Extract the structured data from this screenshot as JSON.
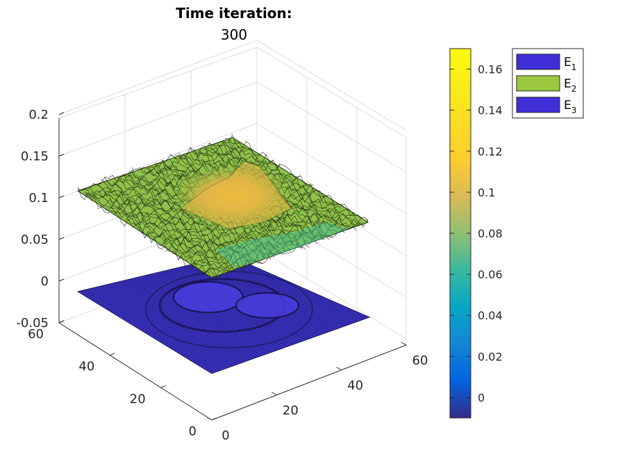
{
  "chart_data": {
    "type": "surface3d",
    "title": "Time iteration:",
    "subtitle": "300",
    "xlim": [
      0,
      60
    ],
    "ylim": [
      0,
      60
    ],
    "zlim": [
      -0.05,
      0.2
    ],
    "x_ticks": [
      "0",
      "20",
      "40",
      "60"
    ],
    "y_ticks": [
      "0",
      "20",
      "40",
      "60"
    ],
    "z_ticks": [
      "-0.05",
      "0",
      "0.05",
      "0.1",
      "0.15",
      "0.2"
    ],
    "colorbar": {
      "range": [
        -0.01,
        0.17
      ],
      "ticks": [
        "0",
        "0.02",
        "0.04",
        "0.06",
        "0.08",
        "0.1",
        "0.12",
        "0.14",
        "0.16"
      ]
    },
    "series": [
      {
        "name": "E1",
        "label_main": "E",
        "label_sub": "1",
        "color": "#3f2fd8",
        "description": "flat field near 0 with ring-shaped ripples"
      },
      {
        "name": "E2",
        "label_main": "E",
        "label_sub": "2",
        "color": "#9bc83f",
        "description": "noisy field around 0.1 with central peak ~0.15"
      },
      {
        "name": "E3",
        "label_main": "E",
        "label_sub": "3",
        "color": "#3f2fd8",
        "description": "flat field near 0"
      }
    ],
    "grid": true,
    "legend_position": "top-right"
  }
}
